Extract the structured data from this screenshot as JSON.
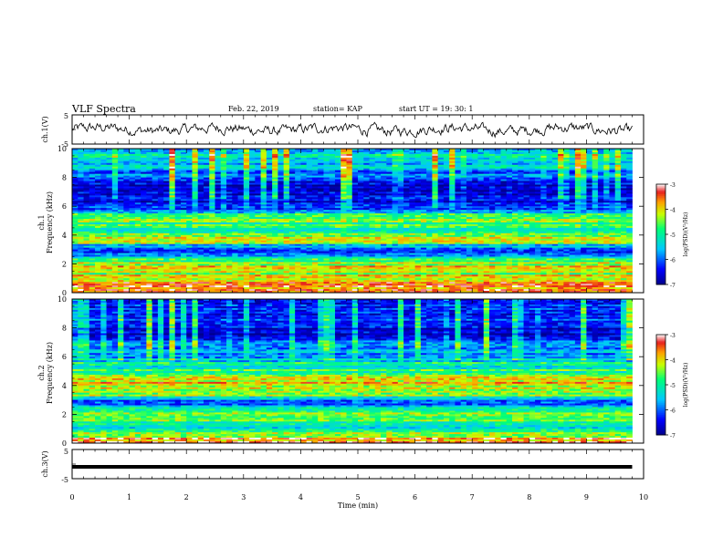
{
  "header": {
    "title": "VLF Spectra",
    "date": "Feb. 22, 2019",
    "station": "station= KAP",
    "start_ut": "start  UT =   19: 30: 1"
  },
  "chart_data": [
    {
      "id": "ch1-waveform",
      "type": "line",
      "ylabel": "ch.1(V)",
      "ylim": [
        -5,
        5
      ],
      "yticks": [
        -5,
        5
      ],
      "xlim": [
        0,
        10
      ],
      "series": [
        {
          "color": "#000000",
          "description_values": "noisy signal oscillating roughly between -2.5 and 2 V"
        }
      ]
    },
    {
      "id": "ch1-spectrogram",
      "type": "heatmap",
      "ylabel": "ch.1",
      "ylabel2": "Frequency (kHz)",
      "ylim": [
        0,
        10
      ],
      "yticks": [
        0,
        2,
        4,
        6,
        8,
        10
      ],
      "xlim": [
        0,
        9.8
      ],
      "colorbar": {
        "label": "log(PSD)(V²/Hz)",
        "range": [
          -7,
          -3
        ],
        "ticks": [
          "-3",
          "-4",
          "-5",
          "-6",
          "-7"
        ]
      },
      "bands_khz": [
        {
          "f": 0.2,
          "level": -3.5
        },
        {
          "f": 1.1,
          "level": -4.3
        },
        {
          "f": 2.1,
          "level": -4.2
        },
        {
          "f": 3.0,
          "level": -6.6
        },
        {
          "f": 3.6,
          "level": -4.0
        },
        {
          "f": 4.4,
          "level": -5.0
        },
        {
          "f": 5.3,
          "level": -4.4
        },
        {
          "f": 6.0,
          "level": -6.5
        },
        {
          "f": 7.1,
          "level": -6.7
        },
        {
          "f": 9.0,
          "level": -5.4
        }
      ]
    },
    {
      "id": "ch2-spectrogram",
      "type": "heatmap",
      "ylabel": "ch.2",
      "ylabel2": "Frequency (kHz)",
      "ylim": [
        0,
        10
      ],
      "yticks": [
        0,
        2,
        4,
        6,
        8,
        10
      ],
      "xlim": [
        0,
        9.8
      ],
      "colorbar": {
        "label": "log(PSD)(V²/Hz)",
        "range": [
          -7,
          -3
        ],
        "ticks": [
          "-3",
          "-4",
          "-5",
          "-6",
          "-7"
        ]
      },
      "bands_khz": [
        {
          "f": 0.2,
          "level": -3.5
        },
        {
          "f": 1.0,
          "level": -5.2
        },
        {
          "f": 2.0,
          "level": -4.6
        },
        {
          "f": 2.9,
          "level": -6.4
        },
        {
          "f": 3.4,
          "level": -4.2
        },
        {
          "f": 4.2,
          "level": -4.1
        },
        {
          "f": 5.2,
          "level": -5.0
        },
        {
          "f": 6.0,
          "level": -5.6
        },
        {
          "f": 7.6,
          "level": -6.6
        },
        {
          "f": 9.0,
          "level": -6.2
        }
      ]
    },
    {
      "id": "ch3-waveform",
      "type": "line",
      "ylabel": "ch.3(V)",
      "ylim": [
        -5,
        5
      ],
      "yticks": [
        -5,
        5
      ],
      "xlim": [
        0,
        10
      ],
      "series": [
        {
          "color": "#000000",
          "constant_value": 0
        }
      ]
    }
  ],
  "xaxis": {
    "label": "Time (min)",
    "ticks": [
      "0",
      "1",
      "2",
      "3",
      "4",
      "5",
      "6",
      "7",
      "8",
      "9",
      "10"
    ],
    "range": [
      0,
      10
    ]
  }
}
